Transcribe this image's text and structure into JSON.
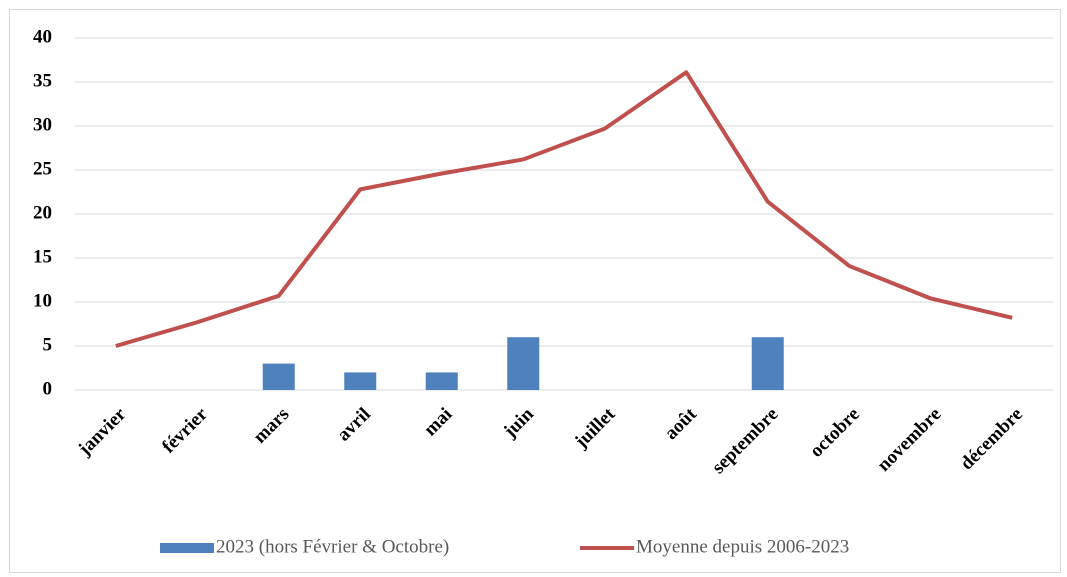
{
  "chart_data": {
    "type": "combo",
    "categories": [
      "janvier",
      "février",
      "mars",
      "avril",
      "mai",
      "juin",
      "juillet",
      "août",
      "septembre",
      "octobre",
      "novembre",
      "décembre"
    ],
    "series": [
      {
        "name": "2023 (hors Février & Octobre)",
        "type": "bar",
        "color": "#4f81bd",
        "values": [
          0,
          null,
          3,
          2,
          2,
          6,
          0,
          0,
          6,
          null,
          0,
          0
        ]
      },
      {
        "name": "Moyenne depuis 2006-2023",
        "type": "line",
        "color": "#c0504d",
        "values": [
          5,
          7.7,
          10.7,
          22.8,
          24.6,
          26.2,
          29.7,
          36.1,
          21.4,
          14.1,
          10.4,
          8.2
        ]
      }
    ],
    "ylim": [
      0,
      40
    ],
    "yticks": [
      0,
      5,
      10,
      15,
      20,
      25,
      30,
      35,
      40
    ],
    "grid": true,
    "legend": "bottom"
  }
}
